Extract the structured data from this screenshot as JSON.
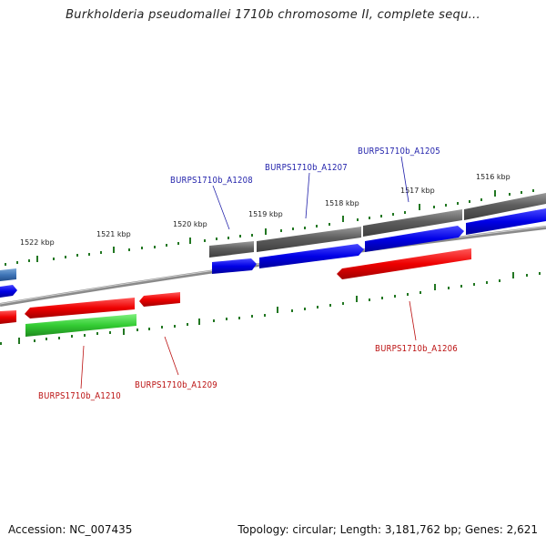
{
  "title": "Burkholderia pseudomallei 1710b chromosome II, complete sequ...",
  "footer": {
    "accession": "Accession: NC_007435",
    "topology": "Topology: circular; Length: 3,181,762 bp; Genes: 2,621"
  },
  "ticks": [
    {
      "label": "1516 kbp"
    },
    {
      "label": "1517 kbp"
    },
    {
      "label": "1518 kbp"
    },
    {
      "label": "1519 kbp"
    },
    {
      "label": "1520 kbp"
    },
    {
      "label": "1521 kbp"
    },
    {
      "label": "1522 kbp"
    }
  ],
  "genes": [
    {
      "label": "BURPS1710b_A1205",
      "color": "#1f1faa"
    },
    {
      "label": "BURPS1710b_A1206",
      "color": "#bb1111"
    },
    {
      "label": "BURPS1710b_A1207",
      "color": "#1f1faa"
    },
    {
      "label": "BURPS1710b_A1208",
      "color": "#1f1faa"
    },
    {
      "label": "BURPS1710b_A1209",
      "color": "#bb1111"
    },
    {
      "label": "BURPS1710b_A1210",
      "color": "#bb1111"
    }
  ],
  "colors": {
    "forward_cds": "#0000ee",
    "reverse_cds": "#ee0000",
    "gene": "#666666",
    "other_feature": "#33cc33",
    "backbone": "#888888",
    "ticks": "#227722"
  }
}
